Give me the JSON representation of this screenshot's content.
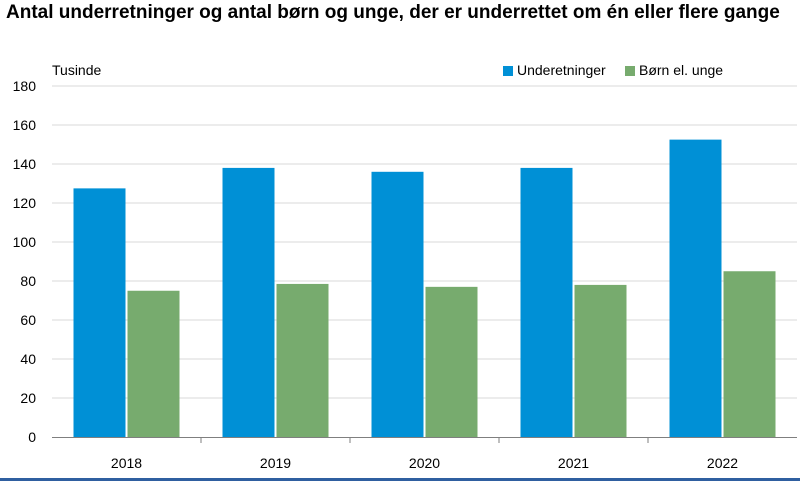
{
  "chart_data": {
    "type": "bar",
    "title": "Antal underretninger og antal børn og unge, der er underrettet om én eller flere gange",
    "unit_label": "Tusinde",
    "categories": [
      "2018",
      "2019",
      "2020",
      "2021",
      "2022"
    ],
    "series": [
      {
        "name": "Underetninger",
        "color": "#0090d6",
        "values": [
          127.5,
          138,
          136,
          138,
          152.5
        ]
      },
      {
        "name": "Børn el. unge",
        "color": "#77ab6e",
        "values": [
          75,
          78.5,
          77,
          78,
          85
        ]
      }
    ],
    "ylim": [
      0,
      180
    ],
    "yticks": [
      0,
      20,
      40,
      60,
      80,
      100,
      120,
      140,
      160,
      180
    ],
    "grid": true,
    "legend": "top-right"
  },
  "colors": {
    "gridline": "#d9d9d9",
    "axis": "#7f7f7f",
    "bottom_rule": "#2f5fa0"
  }
}
